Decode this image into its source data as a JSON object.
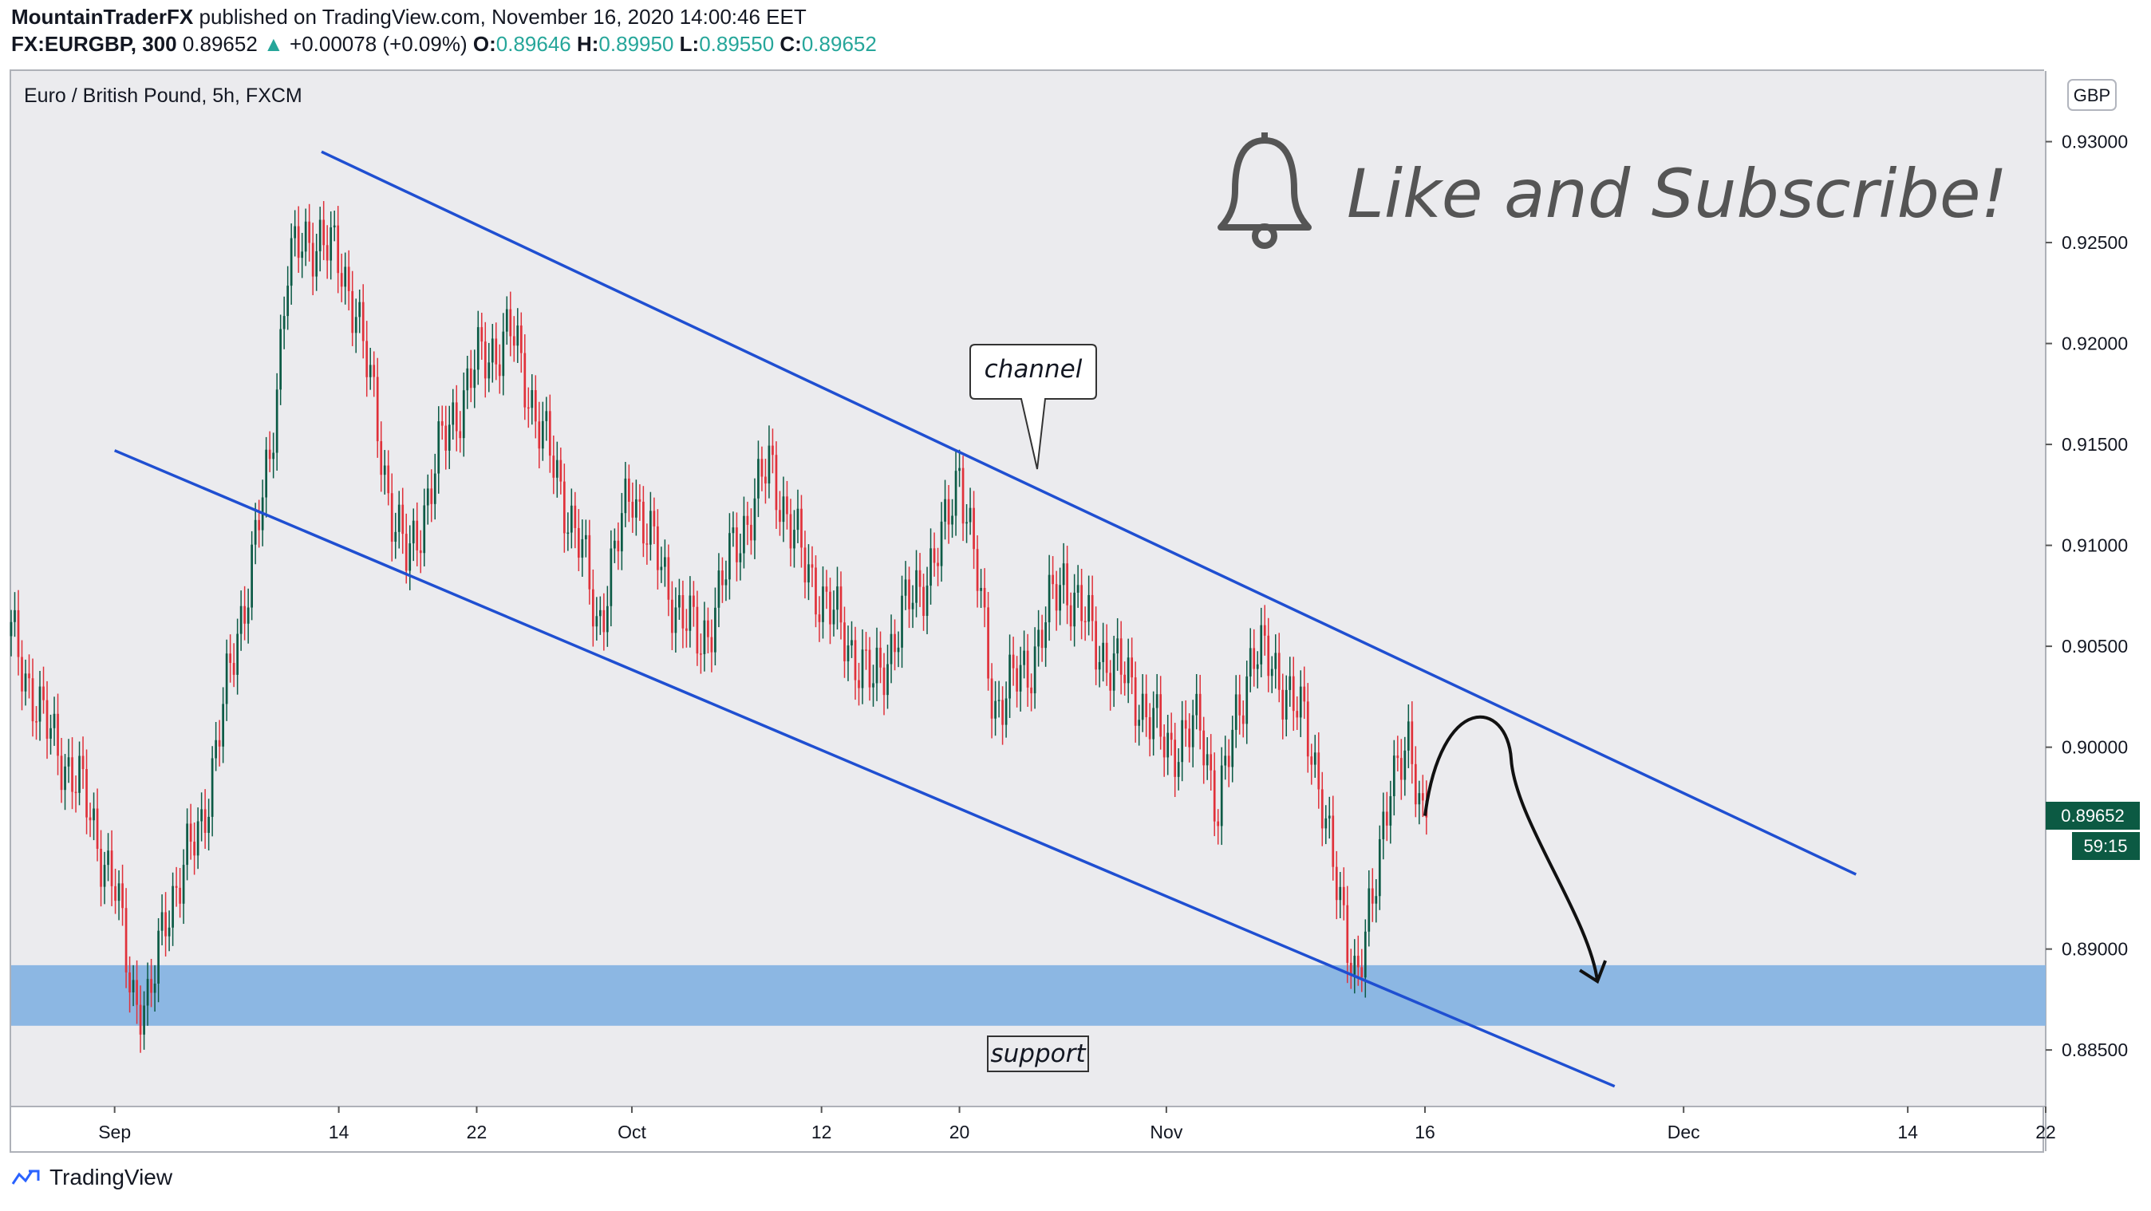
{
  "header": {
    "author": "MountainTraderFX",
    "published_text": "published on TradingView.com, November 16, 2020 14:00:46 EET",
    "symbol": "FX:EURGBP, 300",
    "last": "0.89652",
    "change": "+0.00078 (+0.09%)",
    "o_label": "O:",
    "o": "0.89646",
    "h_label": "H:",
    "h": "0.89950",
    "l_label": "L:",
    "l": "0.89550",
    "c_label": "C:",
    "c": "0.89652"
  },
  "footer": {
    "brand": "TradingView"
  },
  "colors": {
    "up": "#26a69a",
    "candle_up": "#0b5a45",
    "candle_down": "#e0313a",
    "channel": "#1f4fd1",
    "support_zone": "#8cb7e3",
    "plot_bg": "#ebebee"
  },
  "chart_data": {
    "type": "candlestick",
    "title": "Euro / British Pound, 5h, FXCM",
    "currency": "GBP",
    "y_range": [
      0.8822,
      0.9335
    ],
    "y_ticks": [
      "0.93000",
      "0.92500",
      "0.92000",
      "0.91500",
      "0.91000",
      "0.90500",
      "0.90000",
      "0.89000",
      "0.88500"
    ],
    "x_range": [
      "2020-08-26",
      "2020-12-22"
    ],
    "x_ticks": [
      {
        "label": "Sep",
        "date": "2020-09-01"
      },
      {
        "label": "14",
        "date": "2020-09-14"
      },
      {
        "label": "22",
        "date": "2020-09-22"
      },
      {
        "label": "Oct",
        "date": "2020-10-01"
      },
      {
        "label": "12",
        "date": "2020-10-12"
      },
      {
        "label": "20",
        "date": "2020-10-20"
      },
      {
        "label": "Nov",
        "date": "2020-11-01"
      },
      {
        "label": "16",
        "date": "2020-11-16"
      },
      {
        "label": "Dec",
        "date": "2020-12-01"
      },
      {
        "label": "14",
        "date": "2020-12-14"
      },
      {
        "label": "22",
        "date": "2020-12-22"
      }
    ],
    "close_path": [
      {
        "date": "2020-08-26",
        "close": 0.9055
      },
      {
        "date": "2020-08-28",
        "close": 0.901
      },
      {
        "date": "2020-08-30",
        "close": 0.898
      },
      {
        "date": "2020-09-01",
        "close": 0.893
      },
      {
        "date": "2020-09-02",
        "close": 0.888
      },
      {
        "date": "2020-09-03",
        "close": 0.887
      },
      {
        "date": "2020-09-04",
        "close": 0.892
      },
      {
        "date": "2020-09-06",
        "close": 0.896
      },
      {
        "date": "2020-09-08",
        "close": 0.905
      },
      {
        "date": "2020-09-10",
        "close": 0.914
      },
      {
        "date": "2020-09-11",
        "close": 0.924
      },
      {
        "date": "2020-09-13",
        "close": 0.9255
      },
      {
        "date": "2020-09-15",
        "close": 0.922
      },
      {
        "date": "2020-09-17",
        "close": 0.912
      },
      {
        "date": "2020-09-18",
        "close": 0.909
      },
      {
        "date": "2020-09-20",
        "close": 0.915
      },
      {
        "date": "2020-09-22",
        "close": 0.919
      },
      {
        "date": "2020-09-24",
        "close": 0.9205
      },
      {
        "date": "2020-09-26",
        "close": 0.915
      },
      {
        "date": "2020-09-28",
        "close": 0.91
      },
      {
        "date": "2020-09-29",
        "close": 0.906
      },
      {
        "date": "2020-10-01",
        "close": 0.913
      },
      {
        "date": "2020-10-03",
        "close": 0.908
      },
      {
        "date": "2020-10-05",
        "close": 0.905
      },
      {
        "date": "2020-10-07",
        "close": 0.91
      },
      {
        "date": "2020-10-09",
        "close": 0.914
      },
      {
        "date": "2020-10-11",
        "close": 0.909
      },
      {
        "date": "2020-10-13",
        "close": 0.906
      },
      {
        "date": "2020-10-15",
        "close": 0.903
      },
      {
        "date": "2020-10-17",
        "close": 0.907
      },
      {
        "date": "2020-10-19",
        "close": 0.91
      },
      {
        "date": "2020-10-20",
        "close": 0.914
      },
      {
        "date": "2020-10-21",
        "close": 0.9085
      },
      {
        "date": "2020-10-22",
        "close": 0.902
      },
      {
        "date": "2020-10-24",
        "close": 0.904
      },
      {
        "date": "2020-10-26",
        "close": 0.9085
      },
      {
        "date": "2020-10-28",
        "close": 0.905
      },
      {
        "date": "2020-10-30",
        "close": 0.903
      },
      {
        "date": "2020-11-01",
        "close": 0.9
      },
      {
        "date": "2020-11-03",
        "close": 0.901
      },
      {
        "date": "2020-11-04",
        "close": 0.897
      },
      {
        "date": "2020-11-06",
        "close": 0.905
      },
      {
        "date": "2020-11-08",
        "close": 0.903
      },
      {
        "date": "2020-11-09",
        "close": 0.901
      },
      {
        "date": "2020-11-10",
        "close": 0.898
      },
      {
        "date": "2020-11-11",
        "close": 0.892
      },
      {
        "date": "2020-11-12",
        "close": 0.889
      },
      {
        "date": "2020-11-13",
        "close": 0.892
      },
      {
        "date": "2020-11-14",
        "close": 0.899
      },
      {
        "date": "2020-11-15",
        "close": 0.8995
      },
      {
        "date": "2020-11-16",
        "close": 0.89652
      }
    ],
    "price_label": "0.89652",
    "countdown_label": "59:15",
    "annotations": {
      "callout": "channel",
      "support_label": "support",
      "promo": "Like and Subscribe!"
    },
    "channel_upper": [
      {
        "date": "2020-09-13",
        "price": 0.9295
      },
      {
        "date": "2020-12-11",
        "price": 0.8937
      }
    ],
    "channel_lower": [
      {
        "date": "2020-09-01",
        "price": 0.9147
      },
      {
        "date": "2020-11-27",
        "price": 0.8832
      }
    ],
    "support_zone": [
      0.8862,
      0.8892
    ],
    "projection": [
      {
        "date": "2020-11-16",
        "price": 0.8966
      },
      {
        "date": "2020-11-18",
        "price": 0.9012
      },
      {
        "date": "2020-11-21",
        "price": 0.8994
      },
      {
        "date": "2020-11-26",
        "price": 0.8884
      }
    ],
    "grid": false,
    "legend": "none"
  }
}
